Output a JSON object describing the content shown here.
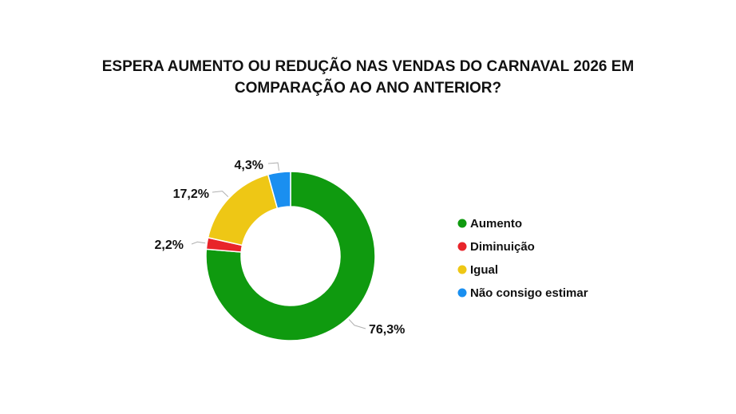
{
  "chart_data": {
    "type": "pie",
    "variant": "donut",
    "title_lines": [
      "ESPERA AUMENTO OU REDUÇÃO NAS VENDAS DO CARNAVAL 2026 EM",
      "COMPARAÇÃO AO ANO ANTERIOR?"
    ],
    "categories": [
      "Aumento",
      "Diminuição",
      "Igual",
      "Não consigo estimar"
    ],
    "values": [
      76.3,
      2.2,
      17.2,
      4.3
    ],
    "value_labels": [
      "76,3%",
      "2,2%",
      "17,2%",
      "4,3%"
    ],
    "colors": [
      "#0f9a0f",
      "#e8242a",
      "#eec715",
      "#1a8ff0"
    ],
    "legend_position": "right"
  }
}
